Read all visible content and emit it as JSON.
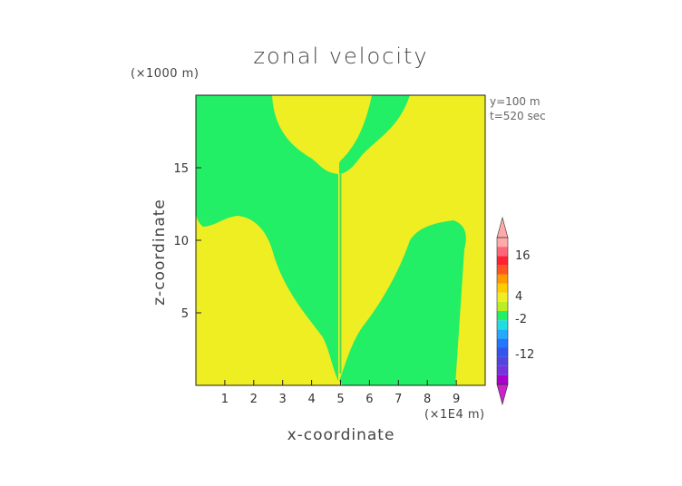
{
  "chart_data": {
    "type": "heatmap",
    "title": "zonal velocity",
    "xlabel": "x-coordinate",
    "ylabel": "z-coordinate",
    "x_unit": "(×1E4 m)",
    "y_unit": "(×1000 m)",
    "info": [
      "y=100 m",
      "t=520 sec"
    ],
    "xlim": [
      0,
      10
    ],
    "ylim": [
      0,
      20
    ],
    "xticks": [
      "1",
      "2",
      "3",
      "4",
      "5",
      "6",
      "7",
      "8",
      "9"
    ],
    "yticks": [
      "5",
      "10",
      "15"
    ],
    "field_levels": [
      {
        "name": "green",
        "range": [
          -2,
          4
        ],
        "color": "#22ee66"
      },
      {
        "name": "yellow",
        "range": [
          4,
          8
        ],
        "color": "#eeee22"
      }
    ],
    "colorbar": {
      "labels": [
        "16",
        "4",
        "-2",
        "-12"
      ],
      "colors": [
        "#aa00cc",
        "#7733dd",
        "#5544dd",
        "#3355ee",
        "#2277ff",
        "#22aaff",
        "#22dddd",
        "#22ee66",
        "#bbee22",
        "#eeee22",
        "#ffcc00",
        "#ff9900",
        "#ff5522",
        "#ff2233",
        "#ff6677",
        "#ffaaaa"
      ],
      "below_color": "#cc22cc",
      "above_color": "#ffaaaa"
    }
  }
}
